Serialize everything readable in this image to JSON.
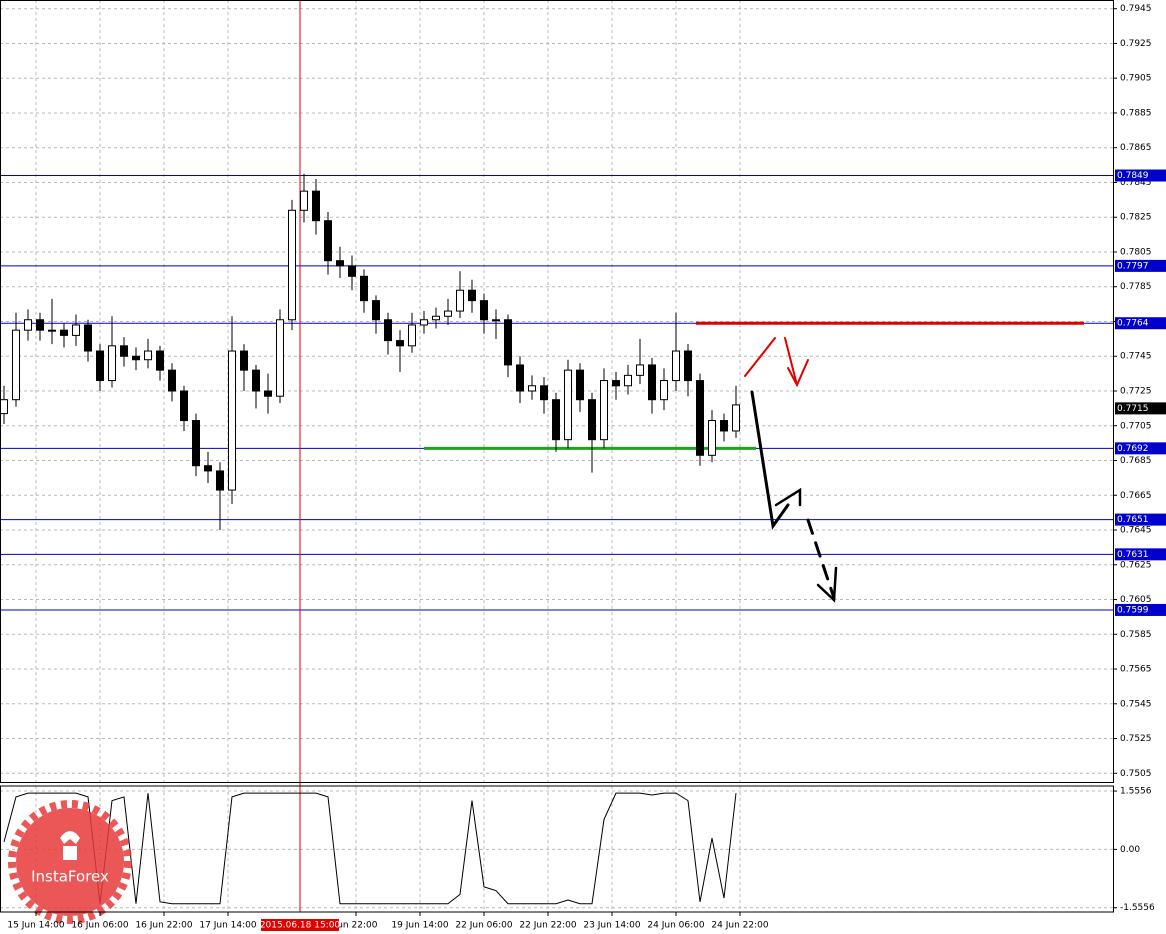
{
  "chart_data": {
    "type": "candlestick",
    "x": [
      0,
      3,
      6,
      9,
      12,
      15,
      18,
      21,
      24,
      27,
      30,
      33,
      36,
      39,
      42,
      45,
      48,
      51,
      54,
      57,
      60,
      63,
      66,
      69,
      72,
      75,
      78,
      81,
      84,
      87,
      90,
      93,
      96,
      99,
      102,
      105,
      108,
      111,
      114,
      117,
      120,
      123,
      126,
      129,
      132,
      135,
      138,
      141,
      144,
      147,
      150,
      153,
      156,
      159,
      162,
      165,
      168,
      171,
      174,
      177,
      180,
      183
    ],
    "open": [
      0.7712,
      0.772,
      0.776,
      0.7766,
      0.776,
      0.776,
      0.7757,
      0.7763,
      0.7748,
      0.7731,
      0.7751,
      0.7745,
      0.7743,
      0.7748,
      0.7737,
      0.7725,
      0.7708,
      0.7682,
      0.7679,
      0.7668,
      0.7748,
      0.7737,
      0.7725,
      0.7722,
      0.7766,
      0.7829,
      0.784,
      0.7823,
      0.78,
      0.7797,
      0.7791,
      0.7777,
      0.7766,
      0.7754,
      0.7751,
      0.7763,
      0.7766,
      0.7768,
      0.7771,
      0.7783,
      0.7777,
      0.7766,
      0.7766,
      0.774,
      0.7725,
      0.7728,
      0.772,
      0.7697,
      0.7737,
      0.772,
      0.7697,
      0.7731,
      0.7728,
      0.7734,
      0.774,
      0.772,
      0.7731,
      0.7748,
      0.7731,
      0.7688,
      0.7708,
      0.7702
    ],
    "high": [
      0.7728,
      0.777,
      0.7772,
      0.777,
      0.7778,
      0.7764,
      0.7769,
      0.7766,
      0.7752,
      0.7768,
      0.7756,
      0.775,
      0.7755,
      0.7751,
      0.7741,
      0.7728,
      0.7712,
      0.769,
      0.7684,
      0.7768,
      0.7752,
      0.774,
      0.7735,
      0.7772,
      0.7835,
      0.785,
      0.7847,
      0.7828,
      0.7808,
      0.7803,
      0.7795,
      0.778,
      0.777,
      0.776,
      0.777,
      0.7771,
      0.7773,
      0.7778,
      0.7794,
      0.7789,
      0.7781,
      0.7772,
      0.7769,
      0.7745,
      0.7734,
      0.7733,
      0.7724,
      0.7743,
      0.7741,
      0.7724,
      0.7738,
      0.7736,
      0.774,
      0.7755,
      0.7744,
      0.7738,
      0.777,
      0.7752,
      0.7735,
      0.7714,
      0.7712,
      0.7728
    ],
    "low": [
      0.7706,
      0.7716,
      0.7754,
      0.7754,
      0.7752,
      0.775,
      0.7751,
      0.7742,
      0.7725,
      0.7727,
      0.7739,
      0.7737,
      0.7738,
      0.7731,
      0.7719,
      0.7702,
      0.7676,
      0.7672,
      0.7645,
      0.766,
      0.7725,
      0.7715,
      0.7712,
      0.7718,
      0.776,
      0.7822,
      0.7815,
      0.7792,
      0.779,
      0.7783,
      0.777,
      0.7758,
      0.7746,
      0.7736,
      0.7747,
      0.7758,
      0.7761,
      0.7763,
      0.7767,
      0.777,
      0.7758,
      0.7755,
      0.7733,
      0.7718,
      0.772,
      0.7712,
      0.769,
      0.7692,
      0.7713,
      0.7678,
      0.7692,
      0.772,
      0.7723,
      0.7729,
      0.7712,
      0.7714,
      0.7725,
      0.7722,
      0.7682,
      0.7684,
      0.7696,
      0.7698
    ],
    "close": [
      0.772,
      0.776,
      0.7766,
      0.776,
      0.776,
      0.7757,
      0.7763,
      0.7748,
      0.7731,
      0.7751,
      0.7745,
      0.7743,
      0.7748,
      0.7737,
      0.7725,
      0.7708,
      0.7682,
      0.7679,
      0.7668,
      0.7748,
      0.7737,
      0.7725,
      0.7722,
      0.7766,
      0.7829,
      0.784,
      0.7823,
      0.78,
      0.7797,
      0.7791,
      0.7777,
      0.7766,
      0.7754,
      0.7751,
      0.7763,
      0.7766,
      0.7768,
      0.7771,
      0.7783,
      0.7777,
      0.7766,
      0.7766,
      0.774,
      0.7725,
      0.7728,
      0.772,
      0.7697,
      0.7737,
      0.772,
      0.7697,
      0.7731,
      0.7728,
      0.7734,
      0.774,
      0.772,
      0.7731,
      0.7748,
      0.7731,
      0.7688,
      0.7708,
      0.7702,
      0.7717
    ],
    "candle_colors": {
      "up": "#ffffff",
      "down": "#000000"
    },
    "xlim": [
      -1,
      277.25
    ],
    "ylim": [
      0.75,
      0.795
    ],
    "yticks": [
      0.7945,
      0.7925,
      0.7905,
      0.7885,
      0.7865,
      0.7845,
      0.7825,
      0.7805,
      0.7785,
      0.7765,
      0.7745,
      0.7725,
      0.7705,
      0.7685,
      0.7665,
      0.7645,
      0.7625,
      0.7605,
      0.7585,
      0.7565,
      0.7545,
      0.7525,
      0.7505
    ],
    "xticks": [
      {
        "value": 8,
        "label": "15 Jun 14:00"
      },
      {
        "value": 24,
        "label": "16 Jun 06:00"
      },
      {
        "value": 40,
        "label": "16 Jun 22:00"
      },
      {
        "value": 56,
        "label": "17 Jun 14:00"
      },
      {
        "value": 88,
        "label": "Jun 22:00"
      },
      {
        "value": 104,
        "label": "19 Jun 14:00"
      },
      {
        "value": 120,
        "label": "22 Jun 06:00"
      },
      {
        "value": 136,
        "label": "22 Jun 22:00"
      },
      {
        "value": 152,
        "label": "23 Jun 14:00"
      },
      {
        "value": 168,
        "label": "24 Jun 06:00"
      },
      {
        "value": 184,
        "label": "24 Jun 22:00"
      }
    ],
    "grid": true,
    "levels": [
      0.7849,
      0.7797,
      0.7764,
      0.7692,
      0.7651,
      0.7631,
      0.7599
    ],
    "level_color": "#0000cc",
    "current_price": 0.7715,
    "resistance": {
      "value": 0.7764,
      "x": [
        173,
        270
      ],
      "color": "#e00000"
    },
    "support": {
      "value": 0.7692,
      "x": [
        105,
        188
      ],
      "color": "#22a022"
    },
    "cursor": {
      "x": 74,
      "label": "2015.06.18 15:00",
      "color": "#e00000"
    },
    "indicator": {
      "type": "line",
      "color": "#000000",
      "ylim": [
        -1.67,
        1.69
      ],
      "yticks": [
        1.5556,
        {
          "value": 0,
          "label": "0.00"
        },
        -1.5556
      ],
      "values": [
        0.2,
        1.4,
        1.5,
        1.5,
        1.5,
        1.5,
        1.5,
        1.4,
        -1.45,
        1.3,
        1.4,
        -1.45,
        1.5,
        -1.4,
        -1.45,
        -1.45,
        -1.45,
        -1.45,
        -1.45,
        1.4,
        1.5,
        1.5,
        1.5,
        1.5,
        1.5,
        1.5,
        1.5,
        1.4,
        -1.45,
        -1.45,
        -1.45,
        -1.45,
        -1.45,
        -1.45,
        -1.45,
        -1.45,
        -1.45,
        -1.45,
        -1.2,
        1.3,
        -1.0,
        -1.1,
        -1.45,
        -1.45,
        -1.45,
        -1.45,
        -1.45,
        -1.35,
        -1.45,
        -1.45,
        0.8,
        1.5,
        1.5,
        1.5,
        1.45,
        1.5,
        1.5,
        1.3,
        -1.4,
        0.3,
        -1.3,
        1.5
      ]
    }
  },
  "logo": "InstaForex"
}
